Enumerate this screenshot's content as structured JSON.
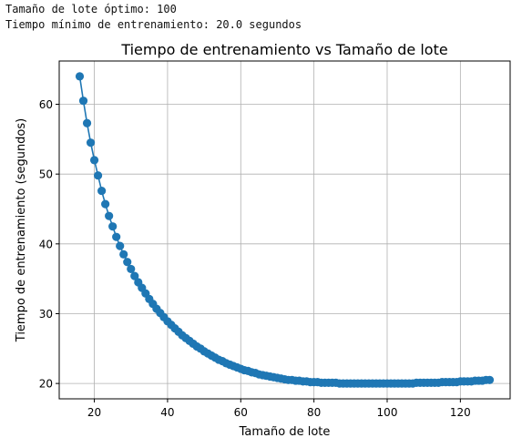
{
  "console": {
    "line1": "Tamaño de lote óptimo: 100",
    "line2": "Tiempo mínimo de entrenamiento: 20.0 segundos"
  },
  "colors": {
    "series": "#1f77b4",
    "grid": "#b0b0b0",
    "axes": "#000000"
  },
  "chart_data": {
    "type": "line",
    "title": "Tiempo de entrenamiento vs Tamaño de lote",
    "xlabel": "Tamaño de lote",
    "ylabel": "Tiempo de entrenamiento (segundos)",
    "xlim": [
      10.4,
      133.6
    ],
    "ylim": [
      17.8,
      66.2
    ],
    "xticks": [
      20,
      40,
      60,
      80,
      100,
      120
    ],
    "yticks": [
      20,
      30,
      40,
      50,
      60
    ],
    "grid": true,
    "marker": "circle",
    "x": [
      16,
      17,
      18,
      19,
      20,
      21,
      22,
      23,
      24,
      25,
      26,
      27,
      28,
      29,
      30,
      31,
      32,
      33,
      34,
      35,
      36,
      37,
      38,
      39,
      40,
      41,
      42,
      43,
      44,
      45,
      46,
      47,
      48,
      49,
      50,
      51,
      52,
      53,
      54,
      55,
      56,
      57,
      58,
      59,
      60,
      61,
      62,
      63,
      64,
      65,
      66,
      67,
      68,
      69,
      70,
      71,
      72,
      73,
      74,
      75,
      76,
      77,
      78,
      79,
      80,
      81,
      82,
      83,
      84,
      85,
      86,
      87,
      88,
      89,
      90,
      91,
      92,
      93,
      94,
      95,
      96,
      97,
      98,
      99,
      100,
      101,
      102,
      103,
      104,
      105,
      106,
      107,
      108,
      109,
      110,
      111,
      112,
      113,
      114,
      115,
      116,
      117,
      118,
      119,
      120,
      121,
      122,
      123,
      124,
      125,
      126,
      127,
      128
    ],
    "y": [
      64.0,
      60.5,
      57.3,
      54.5,
      52.0,
      49.8,
      47.6,
      45.7,
      44.0,
      42.5,
      41.0,
      39.7,
      38.5,
      37.4,
      36.4,
      35.4,
      34.5,
      33.7,
      32.9,
      32.1,
      31.4,
      30.7,
      30.1,
      29.5,
      28.9,
      28.4,
      27.9,
      27.4,
      26.9,
      26.5,
      26.1,
      25.7,
      25.3,
      25.0,
      24.6,
      24.3,
      24.0,
      23.7,
      23.4,
      23.2,
      22.9,
      22.7,
      22.5,
      22.3,
      22.1,
      21.9,
      21.8,
      21.6,
      21.5,
      21.3,
      21.2,
      21.1,
      21.0,
      20.9,
      20.8,
      20.7,
      20.6,
      20.5,
      20.5,
      20.4,
      20.4,
      20.3,
      20.3,
      20.2,
      20.2,
      20.2,
      20.1,
      20.1,
      20.1,
      20.1,
      20.1,
      20.0,
      20.0,
      20.0,
      20.0,
      20.0,
      20.0,
      20.0,
      20.0,
      20.0,
      20.0,
      20.0,
      20.0,
      20.0,
      20.0,
      20.0,
      20.0,
      20.0,
      20.0,
      20.0,
      20.0,
      20.0,
      20.1,
      20.1,
      20.1,
      20.1,
      20.1,
      20.1,
      20.1,
      20.2,
      20.2,
      20.2,
      20.2,
      20.2,
      20.3,
      20.3,
      20.3,
      20.3,
      20.4,
      20.4,
      20.4,
      20.5,
      20.5
    ]
  }
}
